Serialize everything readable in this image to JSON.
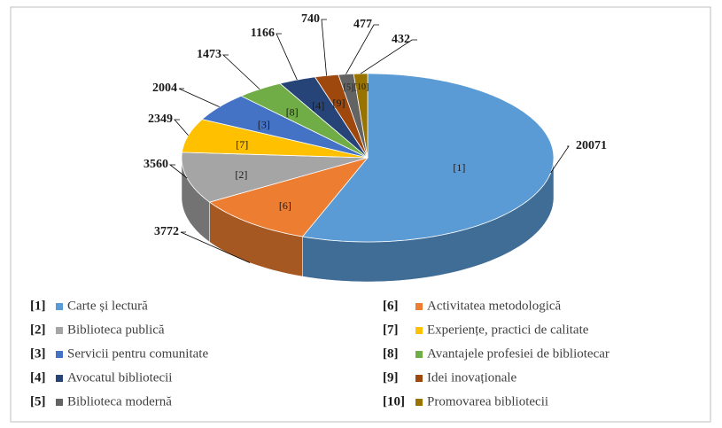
{
  "chart_data": {
    "type": "pie",
    "keys": [
      "[1]",
      "[6]",
      "[2]",
      "[7]",
      "[3]",
      "[8]",
      "[4]",
      "[9]",
      "[5]",
      "[10]"
    ],
    "categories": [
      "Carte și lectură",
      "Activitatea metodologică",
      "Biblioteca publică",
      "Experiențe, practici de calitate",
      "Servicii pentru comunitate",
      "Avantajele profesiei de bibliotecar",
      "Avocatul bibliotecii",
      "Idei inovaționale",
      "Biblioteca modernă",
      "Promovarea bibliotecii"
    ],
    "values": [
      20071,
      3772,
      3560,
      2349,
      2004,
      1473,
      1166,
      740,
      477,
      432
    ],
    "colors": [
      "#5b9bd5",
      "#ed7d31",
      "#a5a5a5",
      "#ffc000",
      "#4472c4",
      "#70ad47",
      "#264478",
      "#9e480e",
      "#636363",
      "#997300"
    ]
  }
}
